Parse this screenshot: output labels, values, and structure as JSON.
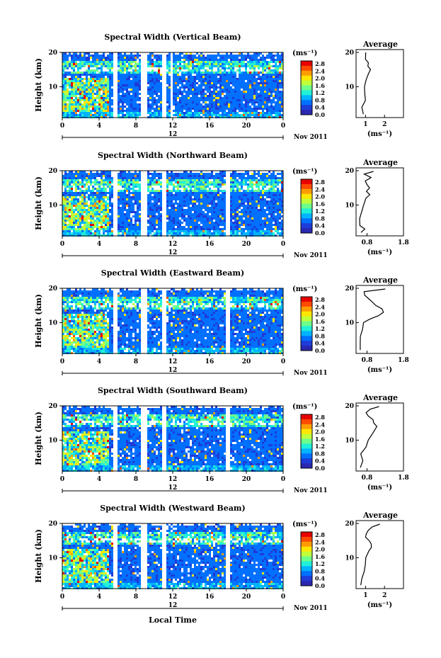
{
  "figure": {
    "xlabel": "Local Time",
    "date_label": "Nov 2011",
    "mid_label": "12",
    "ylabel": "Height (km)",
    "colorbar_unit": "(ms⁻¹)",
    "colorbar_ticks": [
      "2.8",
      "2.4",
      "2.0",
      "1.6",
      "1.2",
      "0.8",
      "0.4",
      "0.0"
    ],
    "colorbar_colors": [
      "#e60000",
      "#ff4a00",
      "#ff9d00",
      "#ffe600",
      "#bfff3c",
      "#6cff8c",
      "#20f0d8",
      "#00b4ff",
      "#0070ff",
      "#1e3cd8",
      "#2a28b0"
    ],
    "average_title": "Average",
    "average_unit": "(ms⁻¹)"
  },
  "panels": [
    {
      "title": "Spectral Width (Vertical Beam)",
      "chart_data": {
        "type": "heatmap",
        "xlim": [
          0,
          24
        ],
        "ylim": [
          1,
          20
        ],
        "x_ticks": [
          "0",
          "4",
          "8",
          "12",
          "16",
          "20",
          "0"
        ],
        "y_ticks": [
          "20",
          "10"
        ],
        "clim": [
          0.0,
          2.8
        ],
        "data_gaps": [
          [
            5.5,
            5.9
          ],
          [
            8.5,
            9.0
          ],
          [
            10.8,
            11.2
          ],
          [
            11.6,
            11.9
          ]
        ]
      },
      "average": {
        "type": "line",
        "xlim": [
          0.5,
          3.0
        ],
        "x_ticks": [
          "1",
          "2"
        ],
        "ylim": [
          1,
          20
        ],
        "y_ticks": [
          "20",
          "10"
        ],
        "profile": [
          [
            0.9,
            2
          ],
          [
            0.85,
            4
          ],
          [
            0.95,
            6
          ],
          [
            1.0,
            8
          ],
          [
            0.9,
            10
          ],
          [
            1.05,
            12
          ],
          [
            1.2,
            14
          ],
          [
            1.3,
            15
          ],
          [
            1.15,
            16
          ],
          [
            1.1,
            17
          ],
          [
            1.0,
            18
          ],
          [
            0.95,
            19
          ],
          [
            1.0,
            20
          ]
        ]
      }
    },
    {
      "title": "Spectral Width (Northward Beam)",
      "chart_data": {
        "type": "heatmap",
        "xlim": [
          0,
          24
        ],
        "ylim": [
          1,
          20
        ],
        "x_ticks": [
          "0",
          "4",
          "8",
          "12",
          "16",
          "20",
          "0"
        ],
        "y_ticks": [
          "20",
          "10"
        ],
        "clim": [
          0.0,
          2.8
        ],
        "data_gaps": [
          [
            5.5,
            5.9
          ],
          [
            8.5,
            9.0
          ],
          [
            10.8,
            11.2
          ],
          [
            17.7,
            18.0
          ]
        ]
      },
      "average": {
        "type": "line",
        "xlim": [
          0.5,
          1.8
        ],
        "x_ticks": [
          "0.8",
          "1.8"
        ],
        "ylim": [
          1,
          20
        ],
        "y_ticks": [
          "20",
          "10"
        ],
        "profile": [
          [
            0.62,
            2
          ],
          [
            0.75,
            3
          ],
          [
            0.62,
            4
          ],
          [
            0.6,
            6
          ],
          [
            0.68,
            8
          ],
          [
            0.72,
            10
          ],
          [
            0.8,
            12
          ],
          [
            0.85,
            13
          ],
          [
            0.78,
            14
          ],
          [
            0.9,
            15
          ],
          [
            0.82,
            16
          ],
          [
            0.75,
            17
          ],
          [
            0.9,
            18
          ],
          [
            0.7,
            19
          ],
          [
            0.95,
            19.8
          ]
        ]
      }
    },
    {
      "title": "Spectral Width (Eastward Beam)",
      "chart_data": {
        "type": "heatmap",
        "xlim": [
          0,
          24
        ],
        "ylim": [
          1,
          20
        ],
        "x_ticks": [
          "0",
          "4",
          "8",
          "12",
          "16",
          "20",
          "0"
        ],
        "y_ticks": [
          "20",
          "10"
        ],
        "clim": [
          0.0,
          2.8
        ],
        "data_gaps": [
          [
            5.5,
            5.9
          ],
          [
            8.5,
            9.0
          ],
          [
            10.8,
            11.2
          ],
          [
            17.7,
            18.0
          ]
        ]
      },
      "average": {
        "type": "line",
        "xlim": [
          0.5,
          1.8
        ],
        "x_ticks": [
          "0.8",
          "1.8"
        ],
        "ylim": [
          1,
          20
        ],
        "y_ticks": [
          "20",
          "10"
        ],
        "profile": [
          [
            0.6,
            2
          ],
          [
            0.62,
            4
          ],
          [
            0.6,
            6
          ],
          [
            0.65,
            8
          ],
          [
            0.72,
            10
          ],
          [
            0.85,
            11
          ],
          [
            1.1,
            12
          ],
          [
            1.25,
            13
          ],
          [
            1.2,
            14
          ],
          [
            1.05,
            15
          ],
          [
            0.95,
            16
          ],
          [
            0.85,
            17
          ],
          [
            0.75,
            18
          ],
          [
            0.7,
            19
          ],
          [
            1.3,
            19.8
          ]
        ]
      }
    },
    {
      "title": "Spectral Width (Southward Beam)",
      "chart_data": {
        "type": "heatmap",
        "xlim": [
          0,
          24
        ],
        "ylim": [
          1,
          20
        ],
        "x_ticks": [
          "0",
          "4",
          "8",
          "12",
          "16",
          "20",
          "0"
        ],
        "y_ticks": [
          "20",
          "10"
        ],
        "clim": [
          0.0,
          2.8
        ],
        "data_gaps": [
          [
            5.5,
            5.9
          ],
          [
            8.5,
            9.0
          ],
          [
            10.8,
            11.2
          ],
          [
            17.7,
            18.0
          ]
        ]
      },
      "average": {
        "type": "line",
        "xlim": [
          0.5,
          1.8
        ],
        "x_ticks": [
          "0.8",
          "1.8"
        ],
        "ylim": [
          1,
          20
        ],
        "y_ticks": [
          "20",
          "10"
        ],
        "profile": [
          [
            0.62,
            2
          ],
          [
            0.68,
            4
          ],
          [
            0.65,
            6
          ],
          [
            0.75,
            8
          ],
          [
            0.85,
            10
          ],
          [
            0.95,
            12
          ],
          [
            1.05,
            14
          ],
          [
            1.0,
            15
          ],
          [
            0.95,
            16
          ],
          [
            0.85,
            17
          ],
          [
            0.8,
            18
          ],
          [
            0.9,
            19
          ],
          [
            1.1,
            19.8
          ]
        ]
      }
    },
    {
      "title": "Spectral Width (Westward Beam)",
      "chart_data": {
        "type": "heatmap",
        "xlim": [
          0,
          24
        ],
        "ylim": [
          1,
          20
        ],
        "x_ticks": [
          "0",
          "4",
          "8",
          "12",
          "16",
          "20",
          "0"
        ],
        "y_ticks": [
          "20",
          "10"
        ],
        "clim": [
          0.0,
          2.8
        ],
        "data_gaps": [
          [
            5.5,
            5.9
          ],
          [
            8.5,
            9.0
          ],
          [
            10.8,
            11.2
          ],
          [
            17.7,
            18.0
          ]
        ]
      },
      "average": {
        "type": "line",
        "xlim": [
          0.5,
          3.0
        ],
        "x_ticks": [
          "1",
          "2"
        ],
        "ylim": [
          1,
          20
        ],
        "y_ticks": [
          "20",
          "10"
        ],
        "profile": [
          [
            0.8,
            2
          ],
          [
            0.85,
            4
          ],
          [
            0.9,
            6
          ],
          [
            1.0,
            8
          ],
          [
            1.05,
            10
          ],
          [
            1.2,
            12
          ],
          [
            1.3,
            13
          ],
          [
            1.25,
            14
          ],
          [
            1.15,
            15
          ],
          [
            1.05,
            16
          ],
          [
            1.0,
            17
          ],
          [
            1.1,
            18
          ],
          [
            1.4,
            19
          ],
          [
            1.8,
            19.8
          ]
        ]
      }
    }
  ]
}
